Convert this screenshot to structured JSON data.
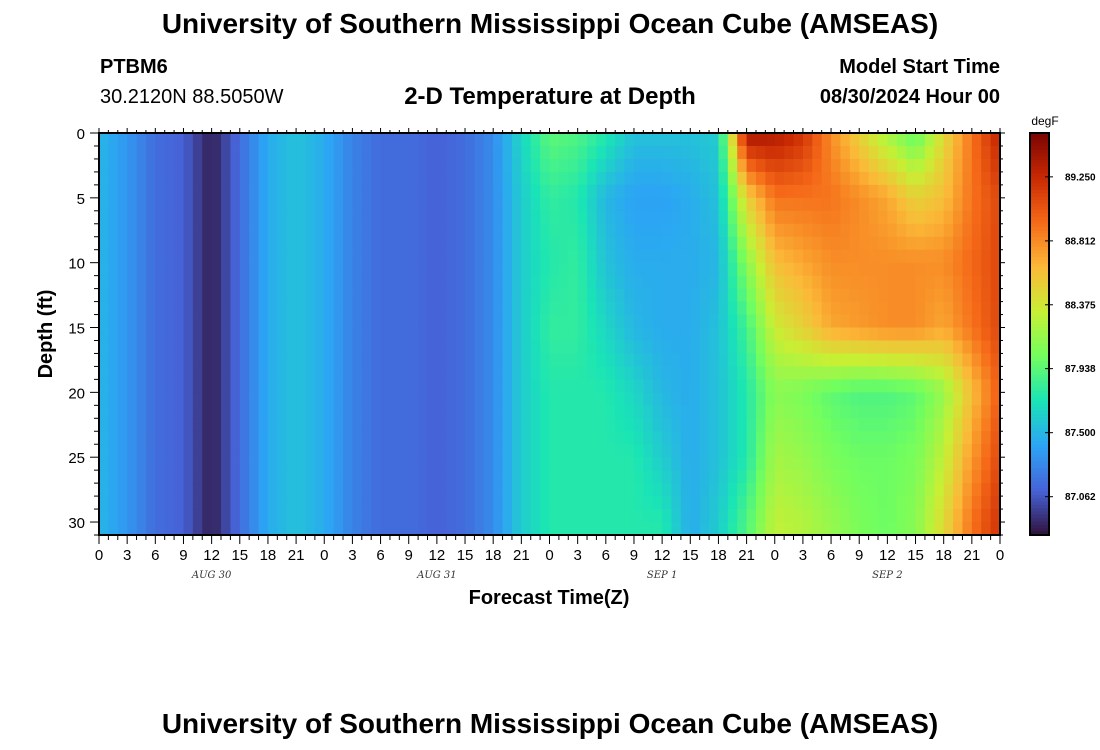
{
  "header": {
    "title": "University of Southern Mississippi Ocean Cube (AMSEAS)",
    "station_id": "PTBM6",
    "station_coords": "30.2120N  88.5050W",
    "chart_title": "2-D Temperature at Depth",
    "model_start_label": "Model Start Time",
    "model_start_value": "08/30/2024 Hour 00"
  },
  "footer": {
    "title": "University of Southern Mississippi Ocean Cube (AMSEAS)"
  },
  "chart_data": {
    "type": "heatmap",
    "title": "2-D Temperature at Depth",
    "xlabel": "Forecast Time(Z)",
    "ylabel": "Depth (ft)",
    "x_tick_labels": [
      "0",
      "3",
      "6",
      "9",
      "12",
      "15",
      "18",
      "21",
      "0",
      "3",
      "6",
      "9",
      "12",
      "15",
      "18",
      "21",
      "0",
      "3",
      "6",
      "9",
      "12",
      "15",
      "18",
      "21",
      "0",
      "3",
      "6",
      "9",
      "12",
      "15",
      "18",
      "21",
      "0"
    ],
    "x_date_labels": [
      {
        "hour": 12,
        "label": "AUG 30"
      },
      {
        "hour": 36,
        "label": "AUG 31"
      },
      {
        "hour": 60,
        "label": "SEP 1"
      },
      {
        "hour": 84,
        "label": "SEP 2"
      }
    ],
    "xlim": [
      0,
      96
    ],
    "y_ticks": [
      0,
      5,
      10,
      15,
      20,
      25,
      30
    ],
    "ylim": [
      0,
      31
    ],
    "y_inverted": true,
    "colorbar": {
      "unit": "degF",
      "ticks": [
        "89.250",
        "88.812",
        "88.375",
        "87.938",
        "87.500",
        "87.062"
      ],
      "tick_values": [
        89.25,
        88.812,
        88.375,
        87.938,
        87.5,
        87.062
      ],
      "range": [
        86.8,
        89.55
      ]
    },
    "colormap": [
      "#30123b",
      "#4663d8",
      "#2ca4f5",
      "#1ae4b6",
      "#72fe5e",
      "#c8ef34",
      "#fbb938",
      "#f56918",
      "#c92903",
      "#7a0403"
    ],
    "depths_ft": [
      0,
      5,
      10,
      15,
      20,
      25,
      30
    ],
    "times_hr": [
      0,
      3,
      6,
      9,
      12,
      15,
      18,
      21,
      24,
      27,
      30,
      33,
      36,
      39,
      42,
      45,
      48,
      51,
      54,
      57,
      60,
      63,
      66,
      69,
      72,
      75,
      78,
      81,
      84,
      87,
      90,
      93,
      96
    ],
    "values_degF": [
      [
        87.5,
        87.35,
        87.15,
        87.1,
        86.85,
        87.15,
        87.45,
        87.55,
        87.45,
        87.25,
        87.15,
        87.15,
        87.1,
        87.15,
        87.3,
        87.65,
        87.95,
        87.9,
        87.75,
        87.55,
        87.55,
        87.55,
        87.6,
        89.4,
        89.35,
        89.2,
        88.8,
        88.5,
        88.2,
        87.95,
        88.45,
        88.9,
        89.3
      ],
      [
        87.5,
        87.35,
        87.15,
        87.1,
        86.85,
        87.15,
        87.45,
        87.55,
        87.45,
        87.25,
        87.15,
        87.15,
        87.1,
        87.15,
        87.3,
        87.6,
        87.8,
        87.75,
        87.5,
        87.4,
        87.4,
        87.45,
        87.55,
        88.5,
        88.9,
        88.9,
        88.9,
        88.8,
        88.7,
        88.5,
        88.6,
        88.9,
        89.1
      ],
      [
        87.5,
        87.35,
        87.15,
        87.1,
        86.85,
        87.15,
        87.45,
        87.55,
        87.45,
        87.25,
        87.15,
        87.15,
        87.1,
        87.15,
        87.3,
        87.6,
        87.75,
        87.8,
        87.55,
        87.45,
        87.45,
        87.45,
        87.5,
        88.1,
        88.6,
        88.7,
        88.8,
        88.8,
        88.8,
        88.8,
        88.8,
        88.95,
        89.1
      ],
      [
        87.5,
        87.35,
        87.15,
        87.1,
        86.85,
        87.15,
        87.45,
        87.55,
        87.45,
        87.25,
        87.15,
        87.15,
        87.1,
        87.15,
        87.3,
        87.6,
        87.8,
        87.8,
        87.65,
        87.5,
        87.45,
        87.45,
        87.55,
        87.85,
        88.35,
        88.5,
        88.7,
        88.75,
        88.8,
        88.8,
        88.7,
        88.9,
        89.1
      ],
      [
        87.5,
        87.35,
        87.15,
        87.1,
        86.85,
        87.15,
        87.45,
        87.55,
        87.45,
        87.25,
        87.15,
        87.15,
        87.1,
        87.15,
        87.3,
        87.6,
        87.75,
        87.75,
        87.75,
        87.65,
        87.5,
        87.45,
        87.55,
        87.75,
        88.1,
        88.05,
        87.95,
        87.9,
        87.9,
        87.95,
        88.15,
        88.6,
        89.0
      ],
      [
        87.5,
        87.35,
        87.15,
        87.1,
        86.85,
        87.15,
        87.45,
        87.55,
        87.45,
        87.25,
        87.15,
        87.15,
        87.1,
        87.15,
        87.3,
        87.6,
        87.75,
        87.75,
        87.75,
        87.75,
        87.6,
        87.45,
        87.55,
        87.75,
        88.2,
        88.15,
        88.05,
        88.0,
        88.0,
        88.05,
        88.3,
        88.75,
        89.1
      ],
      [
        87.5,
        87.35,
        87.15,
        87.1,
        86.85,
        87.15,
        87.45,
        87.55,
        87.45,
        87.25,
        87.15,
        87.15,
        87.1,
        87.15,
        87.3,
        87.6,
        87.75,
        87.75,
        87.75,
        87.75,
        87.75,
        87.45,
        87.6,
        87.9,
        88.3,
        88.25,
        88.15,
        88.05,
        88.0,
        88.1,
        88.45,
        88.9,
        89.2
      ]
    ]
  }
}
